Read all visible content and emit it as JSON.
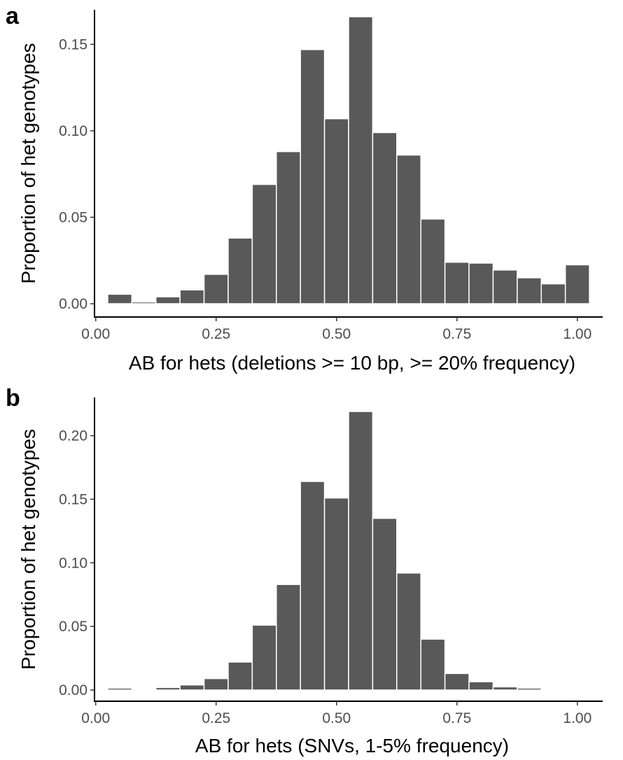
{
  "colors": {
    "bar_fill": "#595959",
    "bar_outline": "#ffffff",
    "axis": "#000000",
    "tick_text": "#4d4d4d",
    "background": "#ffffff"
  },
  "chart_data": [
    {
      "panel": "a",
      "type": "bar",
      "title": "",
      "xlabel": "AB for hets (deletions >= 10 bp, >= 20% frequency)",
      "ylabel": "Proportion of het genotypes",
      "bin_width": 0.05,
      "x": [
        0.05,
        0.1,
        0.15,
        0.2,
        0.25,
        0.3,
        0.35,
        0.4,
        0.45,
        0.5,
        0.55,
        0.6,
        0.65,
        0.7,
        0.75,
        0.8,
        0.85,
        0.9,
        0.95,
        1.0
      ],
      "values": [
        0.0055,
        0.001,
        0.004,
        0.008,
        0.017,
        0.038,
        0.069,
        0.088,
        0.147,
        0.107,
        0.166,
        0.099,
        0.086,
        0.049,
        0.024,
        0.0235,
        0.0195,
        0.015,
        0.0115,
        0.0225
      ],
      "xlim": [
        -0.0025,
        1.0525
      ],
      "ylim": [
        0,
        0.17
      ],
      "xticks": [
        0.0,
        0.25,
        0.5,
        0.75,
        1.0
      ],
      "xtick_labels": [
        "0.00",
        "0.25",
        "0.50",
        "0.75",
        "1.00"
      ],
      "yticks": [
        0.0,
        0.05,
        0.1,
        0.15
      ],
      "ytick_labels": [
        "0.00",
        "0.05",
        "0.10",
        "0.15"
      ],
      "grid": false,
      "legend": "none"
    },
    {
      "panel": "b",
      "type": "bar",
      "title": "",
      "xlabel": "AB for hets (SNVs, 1-5% frequency)",
      "ylabel": "Proportion of het genotypes",
      "bin_width": 0.05,
      "x": [
        0.05,
        0.1,
        0.15,
        0.2,
        0.25,
        0.3,
        0.35,
        0.4,
        0.45,
        0.5,
        0.55,
        0.6,
        0.65,
        0.7,
        0.75,
        0.8,
        0.85,
        0.9,
        0.95,
        1.0
      ],
      "values": [
        0.0015,
        0.0008,
        0.002,
        0.004,
        0.009,
        0.022,
        0.051,
        0.083,
        0.164,
        0.151,
        0.219,
        0.135,
        0.092,
        0.04,
        0.013,
        0.0065,
        0.0025,
        0.0015,
        0.0005,
        0.0003
      ],
      "xlim": [
        -0.0025,
        1.0525
      ],
      "ylim": [
        0,
        0.23
      ],
      "xticks": [
        0.0,
        0.25,
        0.5,
        0.75,
        1.0
      ],
      "xtick_labels": [
        "0.00",
        "0.25",
        "0.50",
        "0.75",
        "1.00"
      ],
      "yticks": [
        0.0,
        0.05,
        0.1,
        0.15,
        0.2
      ],
      "ytick_labels": [
        "0.00",
        "0.05",
        "0.10",
        "0.15",
        "0.20"
      ],
      "grid": false,
      "legend": "none"
    }
  ]
}
